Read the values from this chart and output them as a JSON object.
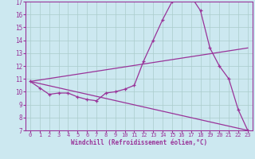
{
  "xlabel": "Windchill (Refroidissement éolien,°C)",
  "bg_color": "#cce8f0",
  "line_color": "#993399",
  "grid_color": "#aacccc",
  "xlim": [
    -0.5,
    23.5
  ],
  "ylim": [
    7,
    17
  ],
  "yticks": [
    7,
    8,
    9,
    10,
    11,
    12,
    13,
    14,
    15,
    16,
    17
  ],
  "xticks": [
    0,
    1,
    2,
    3,
    4,
    5,
    6,
    7,
    8,
    9,
    10,
    11,
    12,
    13,
    14,
    15,
    16,
    17,
    18,
    19,
    20,
    21,
    22,
    23
  ],
  "line1_x": [
    0,
    1,
    2,
    3,
    4,
    5,
    6,
    7,
    8,
    9,
    10,
    11,
    12,
    13,
    14,
    15,
    16,
    17,
    18,
    19,
    20,
    21,
    22,
    23
  ],
  "line1_y": [
    10.8,
    10.3,
    9.8,
    9.9,
    9.9,
    9.6,
    9.4,
    9.3,
    9.9,
    10.0,
    10.2,
    10.5,
    12.4,
    14.0,
    15.6,
    17.0,
    17.1,
    17.4,
    16.3,
    13.4,
    12.0,
    11.0,
    8.6,
    7.0
  ],
  "line2_x": [
    0,
    23
  ],
  "line2_y": [
    10.8,
    13.4
  ],
  "line3_x": [
    0,
    23
  ],
  "line3_y": [
    10.8,
    7.0
  ],
  "marker": "+"
}
